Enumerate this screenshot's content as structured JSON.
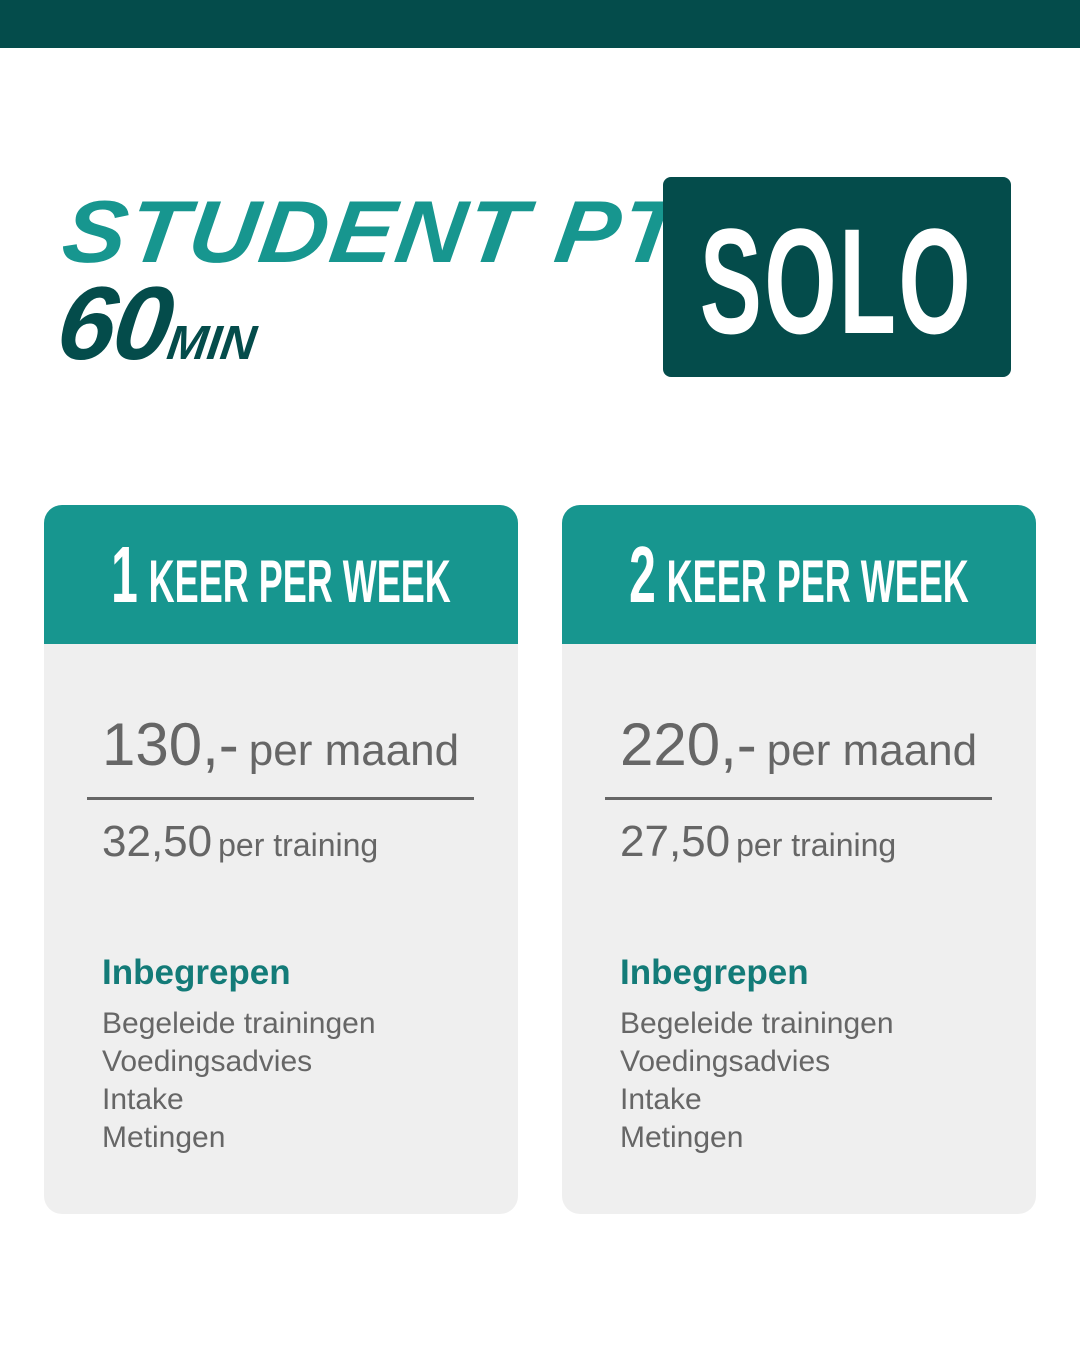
{
  "colors": {
    "brand_dark": "#044c4b",
    "brand_teal": "#17968f",
    "card_bg": "#efefef",
    "text_gray": "#666666"
  },
  "header": {
    "title_line1": "STUDENT PT",
    "duration_number": "60",
    "duration_unit": "MIN",
    "badge": "SOLO"
  },
  "plans": [
    {
      "frequency_number": "1",
      "frequency_label": "KEER PER WEEK",
      "monthly_price": "130,-",
      "monthly_unit": "per maand",
      "session_price": "32,50",
      "session_unit": "per training",
      "included_title": "Inbegrepen",
      "included": [
        "Begeleide trainingen",
        "Voedingsadvies",
        "Intake",
        "Metingen"
      ]
    },
    {
      "frequency_number": "2",
      "frequency_label": "KEER PER WEEK",
      "monthly_price": "220,-",
      "monthly_unit": "per maand",
      "session_price": "27,50",
      "session_unit": "per training",
      "included_title": "Inbegrepen",
      "included": [
        "Begeleide trainingen",
        "Voedingsadvies",
        "Intake",
        "Metingen"
      ]
    }
  ]
}
